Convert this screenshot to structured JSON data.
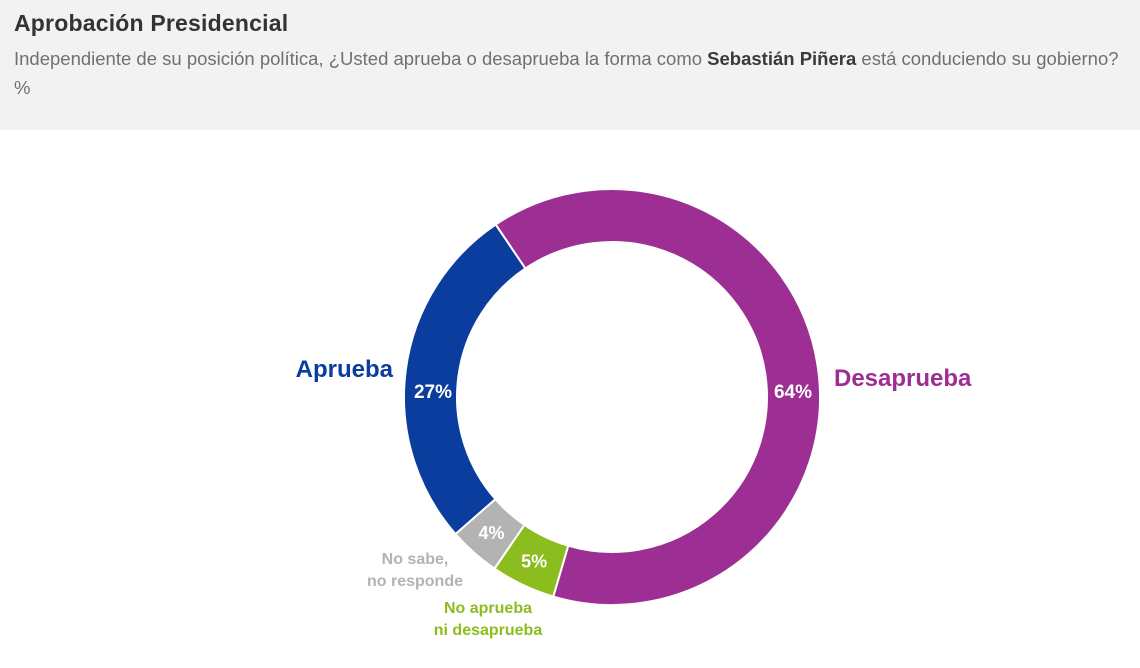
{
  "header": {
    "title": "Aprobación Presidencial",
    "subtitle_pre": "Independiente de su posición política, ¿Usted aprueba o desaprueba la forma como ",
    "subtitle_bold": "Sebastián Piñera",
    "subtitle_post": " está conduciendo su gobierno? %"
  },
  "chart_data": {
    "type": "pie",
    "donut": true,
    "title": "Aprobación Presidencial",
    "slices": [
      {
        "label": "Desaprueba",
        "value": 64,
        "value_label": "64%",
        "color": "#9c2e94"
      },
      {
        "label": "No aprueba ni desaprueba",
        "label_lines": [
          "No aprueba",
          "ni desaprueba"
        ],
        "value": 5,
        "value_label": "5%",
        "color": "#8cbd1e"
      },
      {
        "label": "No sabe, no responde",
        "label_lines": [
          "No sabe,",
          "no responde"
        ],
        "value": 4,
        "value_label": "4%",
        "color": "#b3b3b3"
      },
      {
        "label": "Aprueba",
        "value": 27,
        "value_label": "27%",
        "color": "#0a3d9e"
      }
    ]
  }
}
